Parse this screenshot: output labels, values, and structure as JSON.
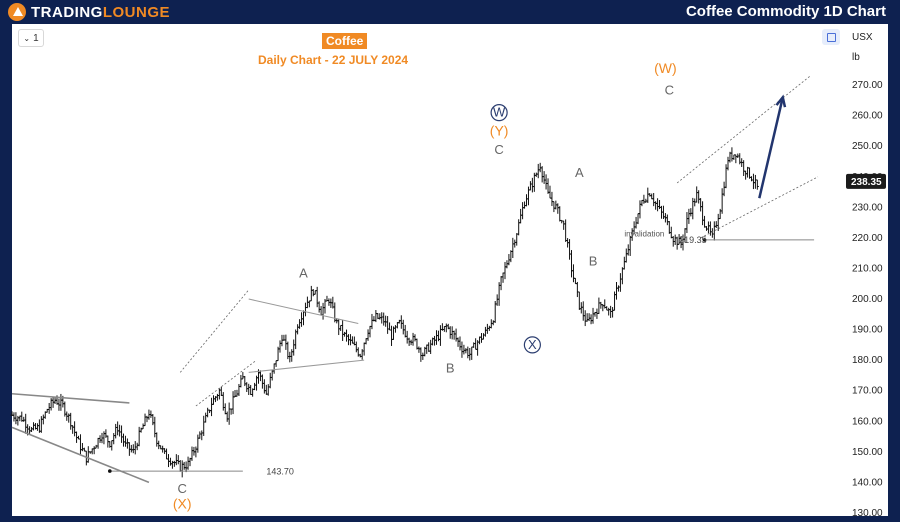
{
  "header": {
    "logo_part1": "TRADING",
    "logo_part2": "LOUNGE",
    "title": "Coffee Commodity 1D Chart"
  },
  "toolbar": {
    "interval_label": "1"
  },
  "axis": {
    "currency": "USX",
    "unit": "lb"
  },
  "chart_data": {
    "type": "candlestick",
    "title": "Coffee",
    "subtitle": "Daily Chart - 22 JULY 2024",
    "ylim": [
      129,
      290
    ],
    "y_ticks": [
      130,
      140,
      150,
      160,
      170,
      180,
      190,
      200,
      210,
      220,
      230,
      240,
      250,
      260,
      270
    ],
    "y_tick_labels": [
      "130.00",
      "140.00",
      "150.00",
      "160.00",
      "170.00",
      "180.00",
      "190.00",
      "200.00",
      "210.00",
      "220.00",
      "230.00",
      "240.00",
      "250.00",
      "260.00",
      "270.00"
    ],
    "last_price": "238.35",
    "grid": false,
    "path_close": [
      [
        0,
        162
      ],
      [
        5,
        161
      ],
      [
        10,
        157
      ],
      [
        14,
        158
      ],
      [
        18,
        164
      ],
      [
        22,
        167
      ],
      [
        26,
        165
      ],
      [
        30,
        160
      ],
      [
        34,
        153
      ],
      [
        38,
        148
      ],
      [
        42,
        152
      ],
      [
        46,
        156
      ],
      [
        50,
        153
      ],
      [
        54,
        158
      ],
      [
        58,
        152
      ],
      [
        62,
        150
      ],
      [
        66,
        157
      ],
      [
        70,
        163
      ],
      [
        74,
        154
      ],
      [
        78,
        149
      ],
      [
        82,
        147
      ],
      [
        86,
        145
      ],
      [
        90,
        146
      ],
      [
        94,
        152
      ],
      [
        98,
        159
      ],
      [
        102,
        166
      ],
      [
        106,
        170
      ],
      [
        110,
        162
      ],
      [
        114,
        168
      ],
      [
        118,
        174
      ],
      [
        122,
        170
      ],
      [
        126,
        176
      ],
      [
        130,
        169
      ],
      [
        134,
        178
      ],
      [
        138,
        188
      ],
      [
        142,
        180
      ],
      [
        146,
        192
      ],
      [
        150,
        198
      ],
      [
        154,
        203
      ],
      [
        158,
        196
      ],
      [
        162,
        200
      ],
      [
        166,
        192
      ],
      [
        170,
        188
      ],
      [
        174,
        185
      ],
      [
        178,
        182
      ],
      [
        182,
        190
      ],
      [
        186,
        194
      ],
      [
        190,
        193
      ],
      [
        194,
        188
      ],
      [
        198,
        192
      ],
      [
        202,
        188
      ],
      [
        206,
        186
      ],
      [
        210,
        182
      ],
      [
        214,
        185
      ],
      [
        218,
        188
      ],
      [
        222,
        191
      ],
      [
        226,
        188
      ],
      [
        230,
        184
      ],
      [
        234,
        182
      ],
      [
        238,
        186
      ],
      [
        242,
        189
      ],
      [
        246,
        194
      ],
      [
        250,
        206
      ],
      [
        254,
        214
      ],
      [
        258,
        222
      ],
      [
        262,
        232
      ],
      [
        266,
        238
      ],
      [
        270,
        244
      ],
      [
        274,
        234
      ],
      [
        278,
        230
      ],
      [
        282,
        224
      ],
      [
        286,
        210
      ],
      [
        290,
        198
      ],
      [
        294,
        192
      ],
      [
        298,
        196
      ],
      [
        302,
        199
      ],
      [
        306,
        195
      ],
      [
        310,
        205
      ],
      [
        314,
        214
      ],
      [
        318,
        224
      ],
      [
        322,
        232
      ],
      [
        326,
        235
      ],
      [
        330,
        230
      ],
      [
        334,
        226
      ],
      [
        338,
        220
      ],
      [
        342,
        218
      ],
      [
        346,
        228
      ],
      [
        350,
        234
      ],
      [
        354,
        225
      ],
      [
        358,
        220
      ],
      [
        362,
        230
      ],
      [
        366,
        246
      ],
      [
        370,
        248
      ],
      [
        374,
        243
      ],
      [
        378,
        240
      ],
      [
        382,
        235
      ]
    ],
    "lines": {
      "wedge_upper": [
        [
          0,
          169
        ],
        [
          60,
          166
        ]
      ],
      "wedge_lower": [
        [
          0,
          158
        ],
        [
          70,
          140
        ]
      ],
      "triangle_upper": [
        [
          121,
          200
        ],
        [
          177,
          192
        ]
      ],
      "triangle_lower": [
        [
          121,
          176
        ],
        [
          180,
          180
        ]
      ],
      "channel_a_upper": [
        [
          86,
          176
        ],
        [
          121,
          203
        ]
      ],
      "channel_a_lower": [
        [
          94,
          165
        ],
        [
          125,
          180
        ]
      ],
      "final_channel_upper": [
        [
          340,
          238
        ],
        [
          408,
          273
        ]
      ],
      "final_channel_lower": [
        [
          352,
          220
        ],
        [
          412,
          240
        ]
      ],
      "projection_arrow": [
        [
          382,
          233
        ],
        [
          394,
          266
        ]
      ],
      "invalidation_line": [
        [
          354,
          219.35
        ],
        [
          410,
          219.35
        ]
      ],
      "x_level_line": [
        [
          50,
          143.7
        ],
        [
          118,
          143.7
        ]
      ]
    },
    "levels": [
      {
        "label": "143.70",
        "value": 143.7
      },
      {
        "label": "219.35",
        "value": 219.35
      }
    ],
    "annotations": {
      "x_wave": "(X)",
      "x_c": "C",
      "a1": "A",
      "b1": "B",
      "w_circled": "W",
      "y_paren": "(Y)",
      "c1": "C",
      "x_circled": "X",
      "a2": "A",
      "b2": "B",
      "w_paren": "(W)",
      "c2": "C",
      "invalidation": "invalidation"
    }
  },
  "colors": {
    "background": "#0e2150",
    "accent": "#f08a24",
    "circled_label": "#2c3e70",
    "arrow": "#22356e",
    "candle": "#111111"
  }
}
